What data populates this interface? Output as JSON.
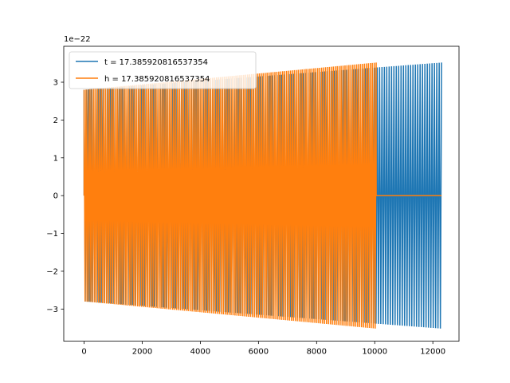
{
  "chart_data": {
    "type": "line",
    "title": "",
    "xlabel": "",
    "ylabel": "",
    "y_offset_text": "1e−22",
    "y_scale_exponent": -22,
    "xlim": [
      -700,
      12900
    ],
    "ylim": [
      -3.85,
      3.95
    ],
    "x_ticks": [
      0,
      2000,
      4000,
      6000,
      8000,
      10000,
      12000
    ],
    "x_tick_labels": [
      "0",
      "2000",
      "4000",
      "6000",
      "8000",
      "10000",
      "12000"
    ],
    "y_ticks": [
      -3,
      -2,
      -1,
      0,
      1,
      2,
      3
    ],
    "y_tick_labels": [
      "−3",
      "−2",
      "−1",
      "0",
      "1",
      "2",
      "3"
    ],
    "grid": false,
    "legend_location": "upper left",
    "series": [
      {
        "name": "t = 17.385920816537354",
        "color": "#1f77b4",
        "x_range": [
          0,
          12300
        ],
        "envelope_start": 2.8,
        "envelope_end": 3.52,
        "min_start": -2.8,
        "min_end": -3.52
      },
      {
        "name": "h = 17.385920816537354",
        "color": "#ff7f0e",
        "x_range": [
          0,
          10050
        ],
        "envelope_start": 2.8,
        "envelope_end": 3.52,
        "min_start": -2.8,
        "min_end": -3.52,
        "flat_after_x": 10050,
        "flat_value": 0
      }
    ]
  }
}
